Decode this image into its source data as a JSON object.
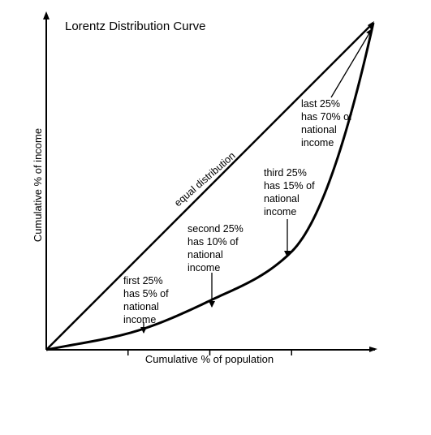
{
  "chart_data": {
    "type": "line",
    "title": "Lorentz Distribution Curve",
    "xlabel": "Cumulative % of population",
    "ylabel": "Cumulative % of income",
    "xlim": [
      0,
      100
    ],
    "ylim": [
      0,
      100
    ],
    "x_ticks": [
      25,
      50,
      75
    ],
    "series": [
      {
        "name": "equal distribution",
        "x": [
          0,
          100
        ],
        "y": [
          0,
          100
        ]
      },
      {
        "name": "",
        "x": [
          0,
          25,
          50,
          75,
          100
        ],
        "y": [
          0,
          5,
          15,
          30,
          100
        ]
      }
    ],
    "annotations": [
      {
        "lines": [
          "first 25%",
          "has 5% of",
          "national",
          "income"
        ],
        "x": 25,
        "y": 5
      },
      {
        "lines": [
          "second 25%",
          "has 10% of",
          "national",
          "income"
        ],
        "x": 50,
        "y": 15
      },
      {
        "lines": [
          "third 25%",
          "has 15% of",
          "national",
          "income"
        ],
        "x": 75,
        "y": 30
      },
      {
        "lines": [
          "last 25%",
          "has 70% of",
          "national",
          "income"
        ],
        "x": 100,
        "y": 100
      }
    ],
    "colors": {
      "ink": "#000000",
      "background": "#ffffff"
    }
  }
}
